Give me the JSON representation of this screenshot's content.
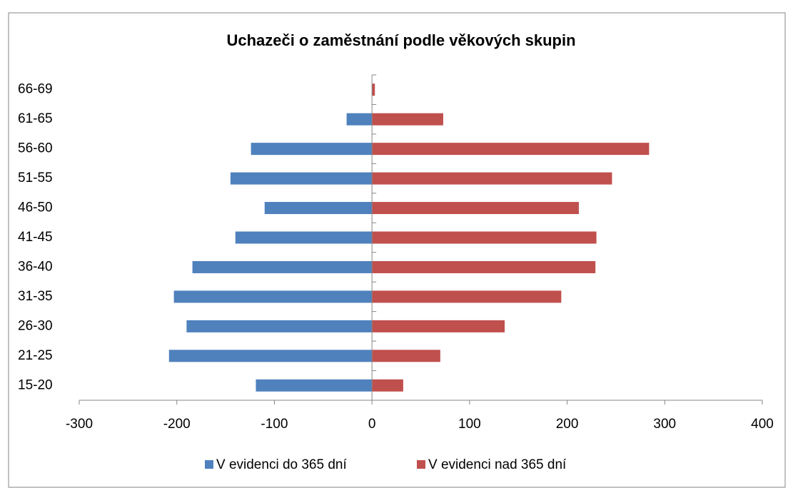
{
  "chart_data": {
    "type": "bar",
    "orientation": "horizontal",
    "title": "Uchazeči o zaměstnání podle věkových skupin",
    "categories": [
      "15-20",
      "21-25",
      "26-30",
      "31-35",
      "36-40",
      "41-45",
      "46-50",
      "51-55",
      "56-60",
      "61-65",
      "66-69"
    ],
    "series": [
      {
        "name": "V evidenci do 365 dní",
        "color": "#4f81bd",
        "values": [
          -119,
          -208,
          -190,
          -203,
          -184,
          -140,
          -110,
          -145,
          -124,
          -26,
          0
        ]
      },
      {
        "name": "V evidenci nad 365 dní",
        "color": "#c0504d",
        "values": [
          32,
          70,
          136,
          194,
          229,
          230,
          212,
          246,
          284,
          73,
          3
        ]
      }
    ],
    "xlim": [
      -300,
      400
    ],
    "xticks": [
      -300,
      -200,
      -100,
      0,
      100,
      200,
      300,
      400
    ],
    "legend": "bottom",
    "grid": false
  }
}
